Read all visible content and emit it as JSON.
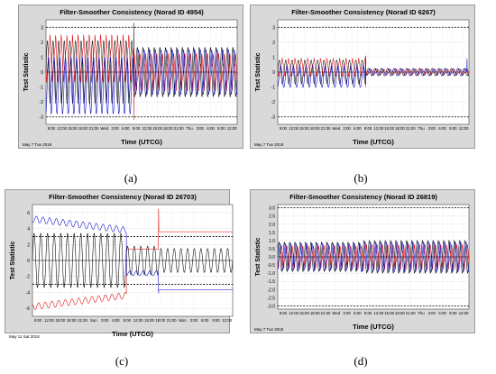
{
  "captions": [
    "(a)",
    "(b)",
    "(c)",
    "(d)"
  ],
  "colors": {
    "panel_bg": "#d9d9d9",
    "plot_bg": "#ffffff",
    "black": "#000000",
    "red": "#e00000",
    "blue": "#0000cc"
  },
  "chart_data": [
    {
      "type": "line",
      "title": "Filter-Smoother Consistency (Norad ID 4954)",
      "xlabel": "Time (UTCG)",
      "ylabel": "Test Statistic",
      "date_label": "May 7 Tue 2019",
      "ylim": [
        -3.5,
        3.5
      ],
      "yticks": [
        -3,
        -2,
        -1,
        0,
        1,
        2,
        3
      ],
      "xticks": [
        "9:00",
        "12:00",
        "15:00",
        "18:00",
        "21:00",
        "Wed",
        "3:00",
        "6:00",
        "9:00",
        "12:00",
        "15:00",
        "18:00",
        "21:00",
        "Thu",
        "3:00",
        "6:00",
        "9:00",
        "12:00"
      ],
      "threshold_lines": [
        3,
        -3
      ],
      "grid": true,
      "pattern": {
        "cycles": 34,
        "change_at": 0.46,
        "break_at": 0.47,
        "amp_before": 2.1,
        "amp_after": 1.65,
        "offset_before": 0.9
      },
      "series": [
        {
          "color": "black",
          "spike": {
            "at": 0.46,
            "value": 3.3
          }
        },
        {
          "color": "red",
          "spike": {
            "at": 0.46,
            "value": -3.2
          }
        },
        {
          "color": "blue"
        }
      ]
    },
    {
      "type": "line",
      "title": "Filter-Smoother Consistency (Norad ID 6267)",
      "xlabel": "Time (UTCG)",
      "ylabel": "Test Statistic",
      "date_label": "May 7 Tue 2019",
      "ylim": [
        -3.5,
        3.5
      ],
      "yticks": [
        -3,
        -2,
        -1,
        0,
        1,
        2,
        3
      ],
      "xticks": [
        "9:00",
        "12:00",
        "15:00",
        "18:00",
        "21:00",
        "Wed",
        "3:00",
        "6:00",
        "9:00",
        "12:00",
        "15:00",
        "18:00",
        "21:00",
        "Thu",
        "3:00",
        "6:00",
        "9:00",
        "12:00"
      ],
      "threshold_lines": [
        3,
        -3
      ],
      "grid": true,
      "pattern": {
        "cycles": 30,
        "change_at": 0.46,
        "break_at": 0.47,
        "amp_before": 0.8,
        "amp_after": 0.25,
        "offset_before": 0.3
      },
      "series": [
        {
          "color": "black",
          "spike": {
            "at": 0.46,
            "value": 1.1
          }
        },
        {
          "color": "red",
          "spike": {
            "at": 0.46,
            "value": -1.0
          }
        },
        {
          "color": "blue",
          "spike": {
            "at": 0.99,
            "value": 0.9
          }
        }
      ]
    },
    {
      "type": "line",
      "title": "Filter-Smoother Consistency (Norad ID 26703)",
      "xlabel": "Time (UTCG)",
      "ylabel": "Test Statistic",
      "date_label": "May 11 Sat 2019",
      "ylim": [
        -7,
        7
      ],
      "yticks": [
        -6,
        -4,
        -2,
        0,
        2,
        4,
        6
      ],
      "xticks": [
        "9:00",
        "12:00",
        "15:00",
        "18:00",
        "21:00",
        "Sun",
        "3:00",
        "6:00",
        "9:00",
        "12:00",
        "15:00",
        "18:00",
        "21:00",
        "Mon",
        "3:00",
        "6:00",
        "9:00",
        "12:00"
      ],
      "threshold_lines": [
        3,
        -3
      ],
      "grid": true,
      "pattern": {
        "cycles": 30,
        "change_at": 0.47,
        "break_at": 0.63,
        "amp_before": 3.4,
        "amp_after": 1.8,
        "offset_before": 0.0
      },
      "envelope": true,
      "series": [
        {
          "color": "black"
        },
        {
          "color": "red",
          "spike": {
            "at": 0.63,
            "value": 6.5
          }
        },
        {
          "color": "blue",
          "spike": {
            "at": 0.63,
            "value": -4.1
          }
        }
      ]
    },
    {
      "type": "line",
      "title": "Filter-Smoother Consistency (Norad ID 26819)",
      "xlabel": "Time (UTCG)",
      "ylabel": "Test Statistic",
      "date_label": "May 7 Tue 2019",
      "ylim": [
        -3.2,
        3.2
      ],
      "yticks": [
        -3.0,
        -2.5,
        -2.0,
        -1.5,
        -1.0,
        -0.5,
        0.0,
        0.5,
        1.0,
        1.5,
        2.0,
        2.5,
        3.0
      ],
      "xticks": [
        "9:00",
        "12:00",
        "15:00",
        "18:00",
        "21:00",
        "Wed",
        "3:00",
        "6:00",
        "9:00",
        "12:00",
        "15:00",
        "18:00",
        "21:00",
        "Thu",
        "3:00",
        "6:00",
        "9:00",
        "12:00"
      ],
      "threshold_lines": [
        3,
        -3
      ],
      "grid": true,
      "pattern": {
        "cycles": 36,
        "change_at": 0.44,
        "break_at": 0.44,
        "amp_before": 0.9,
        "amp_after": 1.0,
        "offset_before": 0.0
      },
      "series": [
        {
          "color": "black"
        },
        {
          "color": "red"
        },
        {
          "color": "blue"
        }
      ]
    }
  ]
}
